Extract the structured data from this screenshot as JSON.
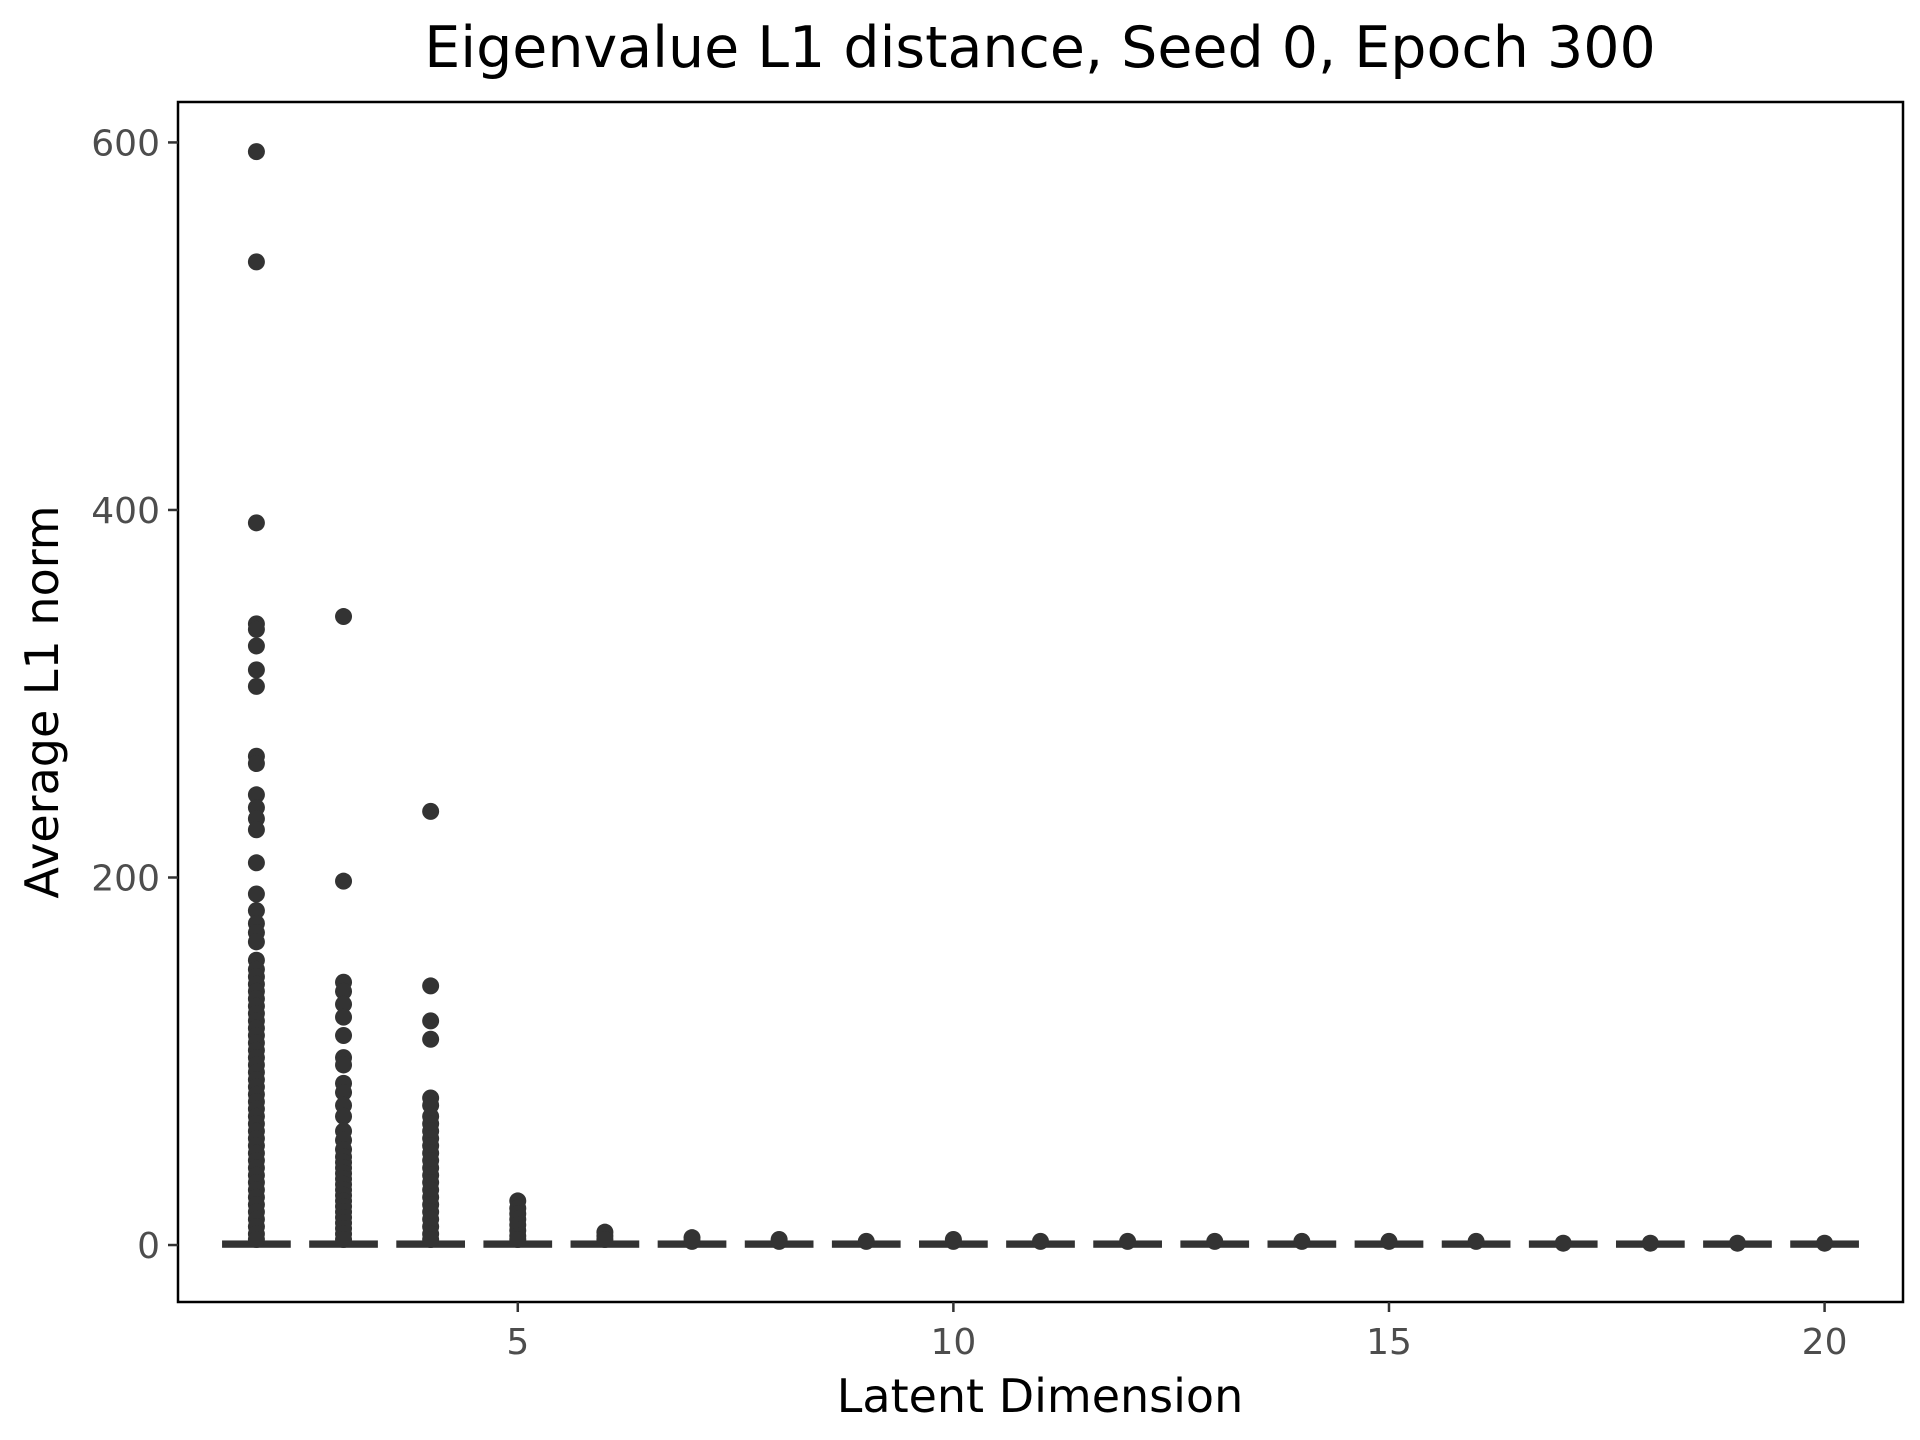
{
  "chart_data": {
    "type": "boxplot",
    "title": "Eigenvalue L1 distance,  Seed 0, Epoch 300",
    "xlabel": "Latent Dimension",
    "ylabel": "Average L1 norm",
    "xlim": [
      1.1,
      20.9
    ],
    "ylim": [
      -31,
      622
    ],
    "x_ticks": [
      5,
      10,
      15,
      20
    ],
    "y_ticks": [
      0,
      200,
      400,
      600
    ],
    "grid": false,
    "legend": "none",
    "colors": {
      "points": "#333333",
      "box": "#333333",
      "frame": "#000000",
      "background": "#ffffff"
    },
    "boxes": [
      {
        "x": 2,
        "q1": 0,
        "median": 0.5,
        "q3": 1
      },
      {
        "x": 3,
        "q1": 0,
        "median": 0.5,
        "q3": 1
      },
      {
        "x": 4,
        "q1": 0,
        "median": 0.5,
        "q3": 1
      },
      {
        "x": 5,
        "q1": 0,
        "median": 0.5,
        "q3": 1
      },
      {
        "x": 6,
        "q1": 0,
        "median": 0.5,
        "q3": 1
      },
      {
        "x": 7,
        "q1": 0,
        "median": 0.5,
        "q3": 1
      },
      {
        "x": 8,
        "q1": 0,
        "median": 0.5,
        "q3": 1
      },
      {
        "x": 9,
        "q1": 0,
        "median": 0.5,
        "q3": 1
      },
      {
        "x": 10,
        "q1": 0,
        "median": 0.5,
        "q3": 1
      },
      {
        "x": 11,
        "q1": 0,
        "median": 0.5,
        "q3": 1
      },
      {
        "x": 12,
        "q1": 0,
        "median": 0.5,
        "q3": 1
      },
      {
        "x": 13,
        "q1": 0,
        "median": 0.5,
        "q3": 1
      },
      {
        "x": 14,
        "q1": 0,
        "median": 0.5,
        "q3": 1
      },
      {
        "x": 15,
        "q1": 0,
        "median": 0.5,
        "q3": 1
      },
      {
        "x": 16,
        "q1": 0,
        "median": 0.5,
        "q3": 1
      },
      {
        "x": 17,
        "q1": 0,
        "median": 0.5,
        "q3": 1
      },
      {
        "x": 18,
        "q1": 0,
        "median": 0.5,
        "q3": 1
      },
      {
        "x": 19,
        "q1": 0,
        "median": 0.5,
        "q3": 1
      },
      {
        "x": 20,
        "q1": 0,
        "median": 0.5,
        "q3": 1
      }
    ],
    "outliers": [
      {
        "x": 2,
        "values": [
          595,
          535,
          393,
          338,
          335,
          326,
          313,
          304,
          266,
          262,
          245,
          238,
          232,
          226,
          208,
          191,
          182,
          175,
          170,
          165,
          155,
          150,
          146,
          142,
          138,
          134,
          130,
          126,
          122,
          118,
          114,
          110,
          106,
          102,
          98,
          94,
          90,
          86,
          82,
          78,
          74,
          70,
          66,
          62,
          58,
          54,
          50,
          46,
          42,
          38,
          34,
          30,
          26,
          22,
          18,
          14,
          10,
          6,
          3
        ]
      },
      {
        "x": 3,
        "values": [
          342,
          198,
          143,
          138,
          131,
          124,
          114,
          102,
          98,
          88,
          83,
          76,
          70,
          62,
          57,
          52,
          48,
          45,
          42,
          39,
          36,
          33,
          30,
          27,
          24,
          21,
          18,
          15,
          12,
          9,
          6,
          3
        ]
      },
      {
        "x": 4,
        "values": [
          236,
          141,
          122,
          112,
          80,
          76,
          70,
          66,
          62,
          58,
          54,
          50,
          46,
          42,
          38,
          34,
          30,
          26,
          22,
          18,
          14,
          10,
          6,
          3
        ]
      },
      {
        "x": 5,
        "values": [
          24,
          20,
          17,
          14,
          11,
          8,
          5,
          3
        ]
      },
      {
        "x": 6,
        "values": [
          7,
          5,
          3
        ]
      },
      {
        "x": 7,
        "values": [
          4,
          2
        ]
      },
      {
        "x": 8,
        "values": [
          3,
          2
        ]
      },
      {
        "x": 9,
        "values": [
          2
        ]
      },
      {
        "x": 10,
        "values": [
          3,
          2
        ]
      },
      {
        "x": 11,
        "values": [
          2
        ]
      },
      {
        "x": 12,
        "values": [
          2
        ]
      },
      {
        "x": 13,
        "values": [
          2
        ]
      },
      {
        "x": 14,
        "values": [
          2
        ]
      },
      {
        "x": 15,
        "values": [
          2
        ]
      },
      {
        "x": 16,
        "values": [
          2
        ]
      },
      {
        "x": 17,
        "values": [
          1
        ]
      },
      {
        "x": 18,
        "values": [
          1
        ]
      },
      {
        "x": 19,
        "values": [
          1
        ]
      },
      {
        "x": 20,
        "values": [
          1
        ]
      }
    ]
  }
}
